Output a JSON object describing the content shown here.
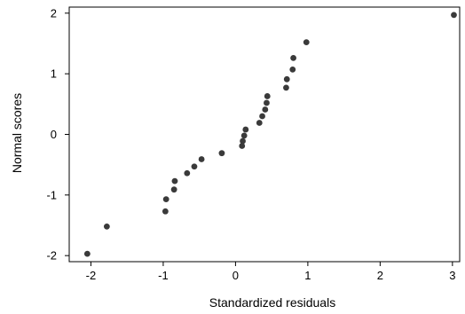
{
  "chart_data": {
    "type": "scatter",
    "title": "",
    "xlabel": "Standardized residuals",
    "ylabel": "Normal scores",
    "xlim": [
      -2.3,
      3.1
    ],
    "ylim": [
      -2.1,
      2.1
    ],
    "xticks": [
      -2,
      -1,
      0,
      1,
      2,
      3
    ],
    "yticks": [
      -2,
      -1,
      0,
      1,
      2
    ],
    "xtick_labels": [
      "-2",
      "-1",
      "0",
      "1",
      "2",
      "3"
    ],
    "ytick_labels": [
      "-2",
      "-1",
      "0",
      "1",
      "2"
    ],
    "grid": false,
    "point_color": "#3a3a3a",
    "points": [
      {
        "x": -2.05,
        "y": -1.97
      },
      {
        "x": -1.78,
        "y": -1.52
      },
      {
        "x": -0.97,
        "y": -1.27
      },
      {
        "x": -0.96,
        "y": -1.07
      },
      {
        "x": -0.85,
        "y": -0.91
      },
      {
        "x": -0.84,
        "y": -0.77
      },
      {
        "x": -0.67,
        "y": -0.64
      },
      {
        "x": -0.57,
        "y": -0.53
      },
      {
        "x": -0.47,
        "y": -0.41
      },
      {
        "x": -0.19,
        "y": -0.31
      },
      {
        "x": 0.09,
        "y": -0.19
      },
      {
        "x": 0.1,
        "y": -0.11
      },
      {
        "x": 0.12,
        "y": -0.02
      },
      {
        "x": 0.14,
        "y": 0.08
      },
      {
        "x": 0.33,
        "y": 0.19
      },
      {
        "x": 0.37,
        "y": 0.3
      },
      {
        "x": 0.41,
        "y": 0.41
      },
      {
        "x": 0.43,
        "y": 0.52
      },
      {
        "x": 0.44,
        "y": 0.63
      },
      {
        "x": 0.7,
        "y": 0.77
      },
      {
        "x": 0.71,
        "y": 0.91
      },
      {
        "x": 0.79,
        "y": 1.07
      },
      {
        "x": 0.8,
        "y": 1.26
      },
      {
        "x": 0.98,
        "y": 1.52
      },
      {
        "x": 3.02,
        "y": 1.97
      }
    ]
  }
}
